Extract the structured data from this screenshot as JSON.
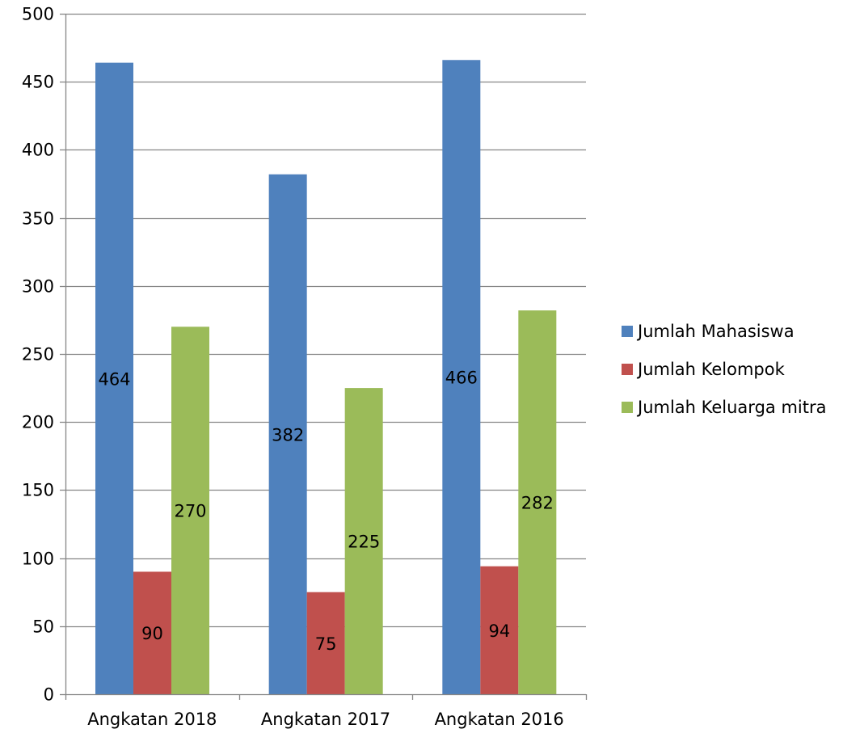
{
  "chart_data": {
    "type": "bar",
    "title": "",
    "xlabel": "",
    "ylabel": "",
    "categories": [
      "Angkatan 2018",
      "Angkatan 2017",
      "Angkatan 2016"
    ],
    "ylim": [
      0,
      500
    ],
    "yticks": [
      0,
      50,
      100,
      150,
      200,
      250,
      300,
      350,
      400,
      450,
      500
    ],
    "grid": true,
    "legend_position": "right",
    "data_labels": true,
    "series": [
      {
        "name": "Jumlah Mahasiswa",
        "color": "#4F81BD",
        "values": [
          464,
          382,
          466
        ]
      },
      {
        "name": "Jumlah Kelompok",
        "color": "#C0504D",
        "values": [
          90,
          75,
          94
        ]
      },
      {
        "name": "Jumlah Keluarga mitra",
        "color": "#9BBB59",
        "values": [
          270,
          225,
          282
        ]
      }
    ]
  }
}
